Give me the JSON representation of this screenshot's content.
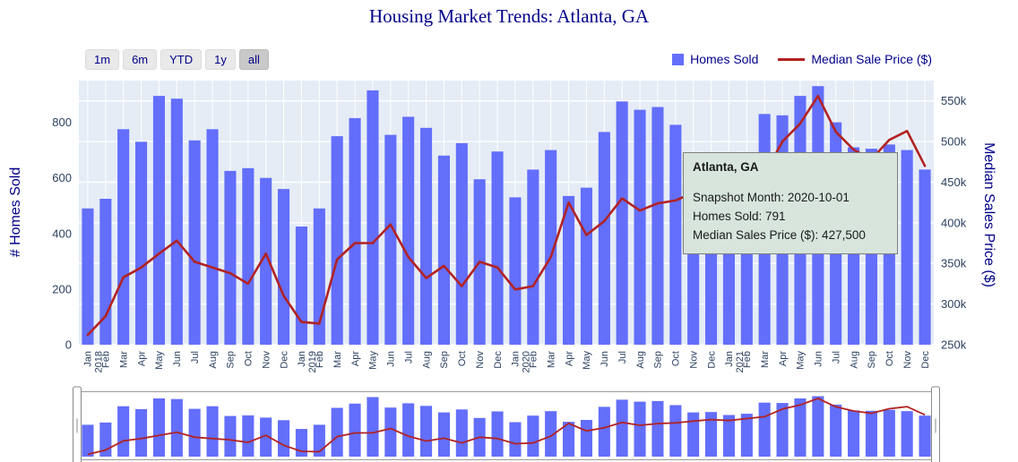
{
  "chart": {
    "title": "Housing Market Trends: Atlanta, GA"
  },
  "controls": {
    "range_buttons": [
      "1m",
      "6m",
      "YTD",
      "1y",
      "all"
    ],
    "active_button": "all"
  },
  "legend": {
    "items": [
      {
        "label": "Homes Sold",
        "type": "bar",
        "color": "#636efa"
      },
      {
        "label": "Median Sale Price ($)",
        "type": "line",
        "color": "#b22222"
      }
    ]
  },
  "axes": {
    "left_title": "# Homes Sold",
    "right_title": "Median Sales Price ($)"
  },
  "tooltip": {
    "title": "Atlanta, GA",
    "lines": [
      "Snapshot Month: 2020-10-01",
      "Homes Sold: 791",
      "Median Sales Price ($): 427,500"
    ]
  },
  "chart_data": {
    "type": "bar",
    "title": "Housing Market Trends: Atlanta, GA",
    "categories": [
      "Jan 2018",
      "Feb",
      "Mar",
      "Apr",
      "May",
      "Jun",
      "Jul",
      "Aug",
      "Sep",
      "Oct",
      "Nov",
      "Dec",
      "Jan 2019",
      "Feb",
      "Mar",
      "Apr",
      "May",
      "Jun",
      "Jul",
      "Aug",
      "Sep",
      "Oct",
      "Nov",
      "Dec",
      "Jan 2020",
      "Feb",
      "Mar",
      "Apr",
      "May",
      "Jun",
      "Jul",
      "Aug",
      "Sep",
      "Oct",
      "Nov",
      "Dec",
      "Jan 2021",
      "Feb",
      "Mar",
      "Apr",
      "May",
      "Jun",
      "Jul",
      "Aug",
      "Sep",
      "Oct",
      "Nov",
      "Dec"
    ],
    "series": [
      {
        "name": "Homes Sold",
        "type": "bar",
        "axis": "left",
        "color": "#636efa",
        "values": [
          490,
          525,
          775,
          730,
          895,
          885,
          735,
          775,
          625,
          635,
          600,
          560,
          425,
          490,
          750,
          815,
          915,
          755,
          820,
          780,
          680,
          725,
          595,
          695,
          530,
          630,
          700,
          535,
          565,
          765,
          875,
          845,
          855,
          791,
          680,
          685,
          640,
          660,
          830,
          825,
          895,
          930,
          800,
          710,
          705,
          720,
          700,
          630
        ]
      },
      {
        "name": "Median Sale Price ($)",
        "type": "line",
        "axis": "right",
        "color": "#b22222",
        "values": [
          262000,
          285000,
          333000,
          345000,
          362000,
          378000,
          352000,
          345000,
          338000,
          325000,
          362000,
          310000,
          278000,
          276000,
          355000,
          375000,
          375000,
          398000,
          358000,
          332000,
          347000,
          322000,
          352000,
          345000,
          318000,
          322000,
          358000,
          425000,
          385000,
          402000,
          430000,
          415000,
          424000,
          427500,
          437000,
          445000,
          440000,
          450000,
          460000,
          500000,
          522000,
          556000,
          512000,
          490000,
          478000,
          502000,
          513000,
          470000
        ]
      }
    ],
    "left_axis": {
      "title": "# Homes Sold",
      "range": [
        0,
        950
      ],
      "ticks": [
        0,
        200,
        400,
        600,
        800
      ]
    },
    "right_axis": {
      "title": "Median Sales Price ($)",
      "range": [
        250000,
        575000
      ],
      "ticks": [
        250000,
        300000,
        350000,
        400000,
        450000,
        500000,
        550000
      ],
      "tick_labels": [
        "250k",
        "300k",
        "350k",
        "400k",
        "450k",
        "500k",
        "550k"
      ]
    },
    "grid": true,
    "plot_bgcolor": "#e5ecf6",
    "legend_position": "top-right",
    "rangeslider": true,
    "highlighted_point": {
      "month": "2020-10-01",
      "homes_sold": 791,
      "median_price": 427500
    }
  }
}
